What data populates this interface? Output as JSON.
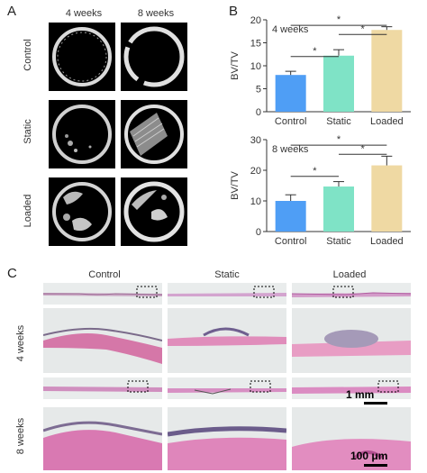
{
  "panel_labels": {
    "a": "A",
    "b": "B",
    "c": "C"
  },
  "panel_a": {
    "columns": [
      "4 weeks",
      "8 weeks"
    ],
    "rows": [
      "Control",
      "Static",
      "Loaded"
    ]
  },
  "panel_c": {
    "columns": [
      "Control",
      "Static",
      "Loaded"
    ],
    "rows": [
      "4 weeks",
      "8 weeks"
    ],
    "scale_low": "1 mm",
    "scale_high": "100 μm"
  },
  "chart_data": [
    {
      "type": "bar",
      "title": "4 weeks",
      "categories": [
        "Control",
        "Static",
        "Loaded"
      ],
      "values": [
        8.0,
        12.2,
        17.8
      ],
      "errors": [
        0.8,
        1.3,
        0.7
      ],
      "ylabel": "BV/TV",
      "ylim": [
        0,
        20
      ],
      "yticks": [
        "0",
        "5",
        "10",
        "15",
        "20"
      ],
      "colors": [
        "#4f9ef5",
        "#7fe3c6",
        "#efd9a3"
      ],
      "significance": [
        "*",
        "*",
        "*"
      ]
    },
    {
      "type": "bar",
      "title": "8 weeks",
      "categories": [
        "Control",
        "Static",
        "Loaded"
      ],
      "values": [
        10.0,
        14.7,
        21.6
      ],
      "errors": [
        2.0,
        1.6,
        3.0
      ],
      "ylabel": "BV/TV",
      "ylim": [
        0,
        30
      ],
      "yticks": [
        "0",
        "10",
        "20",
        "30"
      ],
      "colors": [
        "#4f9ef5",
        "#7fe3c6",
        "#efd9a3"
      ],
      "significance": [
        "*",
        "*",
        "*"
      ]
    }
  ]
}
